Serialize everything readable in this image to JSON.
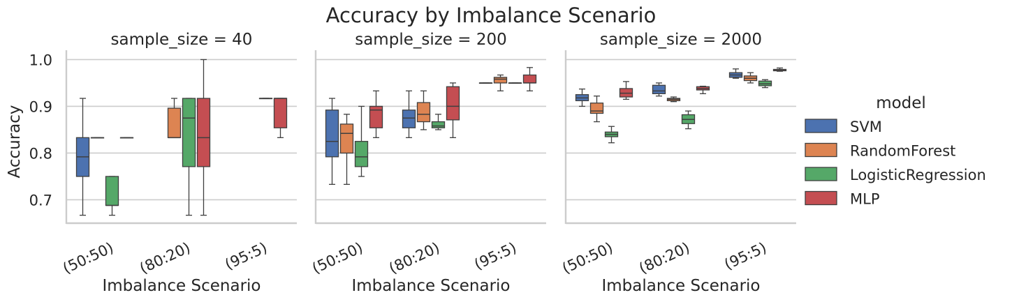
{
  "chart_data": {
    "type": "box",
    "title": "Accuracy by Imbalance Scenario",
    "ylabel": "Accuracy",
    "xlabel": "Imbalance Scenario",
    "ylim": [
      0.65,
      1.02
    ],
    "yticks": [
      0.7,
      0.8,
      0.9,
      1.0
    ],
    "ytick_labels": [
      "0.7",
      "0.8",
      "0.9",
      "1.0"
    ],
    "categories": [
      "(50:50)",
      "(80:20)",
      "(95:5)"
    ],
    "grid": true,
    "legend": {
      "title": "model",
      "placement": "right",
      "entries": [
        "SVM",
        "RandomForest",
        "LogisticRegression",
        "MLP"
      ]
    },
    "colors": {
      "SVM": "#4c72b0",
      "RandomForest": "#dd8452",
      "LogisticRegression": "#55a868",
      "MLP": "#c44e52"
    },
    "panels": [
      {
        "title": "sample_size = 40",
        "boxes": {
          "SVM": [
            [
              0.667,
              0.75,
              0.792,
              0.833,
              0.917
            ],
            null,
            null
          ],
          "RandomForest": [
            [
              0.833,
              0.833,
              0.833,
              0.833,
              0.833
            ],
            [
              0.833,
              0.833,
              0.833,
              0.896,
              0.917
            ],
            null
          ],
          "LogisticRegression": [
            [
              0.667,
              0.688,
              0.688,
              0.75,
              0.75
            ],
            [
              0.667,
              0.771,
              0.875,
              0.917,
              0.917
            ],
            [
              0.917,
              0.917,
              0.917,
              0.917,
              0.917
            ]
          ],
          "MLP": [
            [
              0.833,
              0.833,
              0.833,
              0.833,
              0.833
            ],
            [
              0.667,
              0.771,
              0.833,
              0.917,
              1.0
            ],
            [
              0.833,
              0.854,
              0.917,
              0.917,
              0.917
            ]
          ]
        },
        "extra_boxes_note": ""
      },
      {
        "title": "sample_size = 200",
        "boxes": {
          "SVM": [
            [
              0.733,
              0.792,
              0.825,
              0.892,
              0.917
            ],
            [
              0.833,
              0.854,
              0.875,
              0.892,
              0.933
            ],
            [
              0.95,
              0.95,
              0.95,
              0.95,
              0.95
            ]
          ],
          "RandomForest": [
            [
              0.733,
              0.8,
              0.842,
              0.862,
              0.883
            ],
            [
              0.85,
              0.867,
              0.883,
              0.908,
              0.933
            ],
            [
              0.933,
              0.95,
              0.958,
              0.962,
              0.967
            ]
          ],
          "LogisticRegression": [
            [
              0.75,
              0.771,
              0.792,
              0.825,
              0.9
            ],
            [
              0.85,
              0.854,
              0.858,
              0.867,
              0.883
            ],
            [
              0.95,
              0.95,
              0.95,
              0.95,
              0.95
            ]
          ],
          "MLP": [
            [
              0.833,
              0.854,
              0.892,
              0.9,
              0.933
            ],
            [
              0.833,
              0.871,
              0.9,
              0.942,
              0.95
            ],
            [
              0.933,
              0.95,
              0.95,
              0.967,
              0.983
            ]
          ]
        }
      },
      {
        "title": "sample_size = 2000",
        "boxes": {
          "SVM": [
            [
              0.9,
              0.912,
              0.918,
              0.925,
              0.937
            ],
            [
              0.922,
              0.927,
              0.933,
              0.945,
              0.95
            ],
            [
              0.96,
              0.962,
              0.967,
              0.972,
              0.98
            ]
          ],
          "RandomForest": [
            [
              0.867,
              0.885,
              0.89,
              0.907,
              0.922
            ],
            [
              0.91,
              0.912,
              0.915,
              0.917,
              0.92
            ],
            [
              0.95,
              0.955,
              0.96,
              0.965,
              0.972
            ]
          ],
          "LogisticRegression": [
            [
              0.822,
              0.835,
              0.84,
              0.845,
              0.857
            ],
            [
              0.852,
              0.863,
              0.872,
              0.882,
              0.89
            ],
            [
              0.94,
              0.944,
              0.948,
              0.954,
              0.957
            ]
          ],
          "MLP": [
            [
              0.915,
              0.92,
              0.928,
              0.938,
              0.953
            ],
            [
              0.927,
              0.935,
              0.938,
              0.942,
              0.943
            ],
            [
              0.975,
              0.976,
              0.978,
              0.979,
              0.982
            ]
          ]
        }
      }
    ]
  }
}
